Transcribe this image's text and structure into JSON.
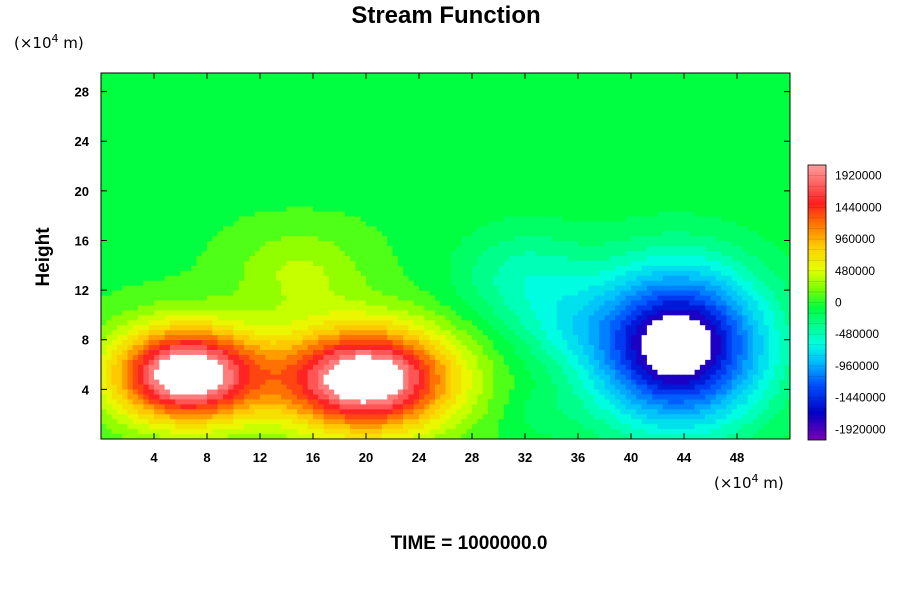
{
  "chart_data": {
    "type": "heatmap",
    "title": "Stream Function",
    "xlabel": "",
    "ylabel": "Height",
    "x_unit": {
      "prefix": "(×10",
      "exp": "4",
      "suffix": " m)"
    },
    "y_unit": {
      "prefix": "(×10",
      "exp": "4",
      "suffix": " m)"
    },
    "xlim": [
      0,
      52
    ],
    "ylim": [
      0,
      29.5
    ],
    "x_ticks": [
      "4",
      "8",
      "12",
      "16",
      "20",
      "24",
      "28",
      "32",
      "36",
      "40",
      "44",
      "48"
    ],
    "y_ticks": [
      "4",
      "8",
      "12",
      "16",
      "20",
      "24",
      "28"
    ],
    "colorbar": {
      "range": [
        -2080000,
        2080000
      ],
      "labels": [
        "1920000",
        "1440000",
        "960000",
        "480000",
        "0",
        "-480000",
        "-960000",
        "-1440000",
        "-1920000"
      ]
    },
    "features": [
      {
        "kind": "max",
        "x": 6.5,
        "y": 5.2,
        "value": 2050000
      },
      {
        "kind": "max",
        "x": 20,
        "y": 4.8,
        "value": 2050000
      },
      {
        "kind": "min",
        "x": 43.5,
        "y": 7.5,
        "value": -2080000
      }
    ],
    "footer": "TIME = 1000000.0"
  }
}
